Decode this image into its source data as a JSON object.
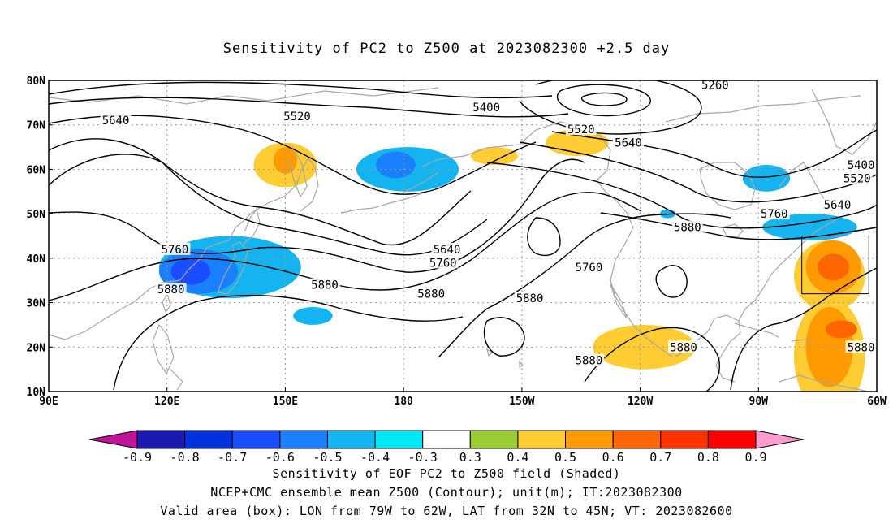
{
  "title": "Sensitivity of PC2 to Z500 at 2023082300 +2.5 day",
  "map": {
    "lon_range": [
      90,
      300
    ],
    "lat_range": [
      10,
      80
    ],
    "lon_ticks": [
      {
        "lon": 90,
        "label": "90E"
      },
      {
        "lon": 120,
        "label": "120E"
      },
      {
        "lon": 150,
        "label": "150E"
      },
      {
        "lon": 180,
        "label": "180"
      },
      {
        "lon": 210,
        "label": "150W"
      },
      {
        "lon": 240,
        "label": "120W"
      },
      {
        "lon": 270,
        "label": "90W"
      },
      {
        "lon": 300,
        "label": "60W"
      }
    ],
    "lat_ticks": [
      {
        "lat": 10,
        "label": "10N"
      },
      {
        "lat": 20,
        "label": "20N"
      },
      {
        "lat": 30,
        "label": "30N"
      },
      {
        "lat": 40,
        "label": "40N"
      },
      {
        "lat": 50,
        "label": "50N"
      },
      {
        "lat": 60,
        "label": "60N"
      },
      {
        "lat": 70,
        "label": "70N"
      },
      {
        "lat": 80,
        "label": "80N"
      }
    ],
    "gridlines": true,
    "valid_box": {
      "lon_min": 281,
      "lon_max": 298,
      "lat_min": 32,
      "lat_max": 45
    },
    "contour_labels": [
      {
        "text": "5260",
        "lon": 259,
        "lat": 79
      },
      {
        "text": "5400",
        "lon": 201,
        "lat": 74
      },
      {
        "text": "5400",
        "lon": 296,
        "lat": 61
      },
      {
        "text": "5520",
        "lon": 153,
        "lat": 72
      },
      {
        "text": "5520",
        "lon": 225,
        "lat": 69
      },
      {
        "text": "5520",
        "lon": 295,
        "lat": 58
      },
      {
        "text": "5640",
        "lon": 107,
        "lat": 71
      },
      {
        "text": "5640",
        "lon": 237,
        "lat": 66
      },
      {
        "text": "5640",
        "lon": 290,
        "lat": 52
      },
      {
        "text": "5640",
        "lon": 191,
        "lat": 42
      },
      {
        "text": "5760",
        "lon": 122,
        "lat": 42
      },
      {
        "text": "5760",
        "lon": 274,
        "lat": 50
      },
      {
        "text": "5760",
        "lon": 190,
        "lat": 39
      },
      {
        "text": "5760",
        "lon": 227,
        "lat": 38
      },
      {
        "text": "5880",
        "lon": 121,
        "lat": 33
      },
      {
        "text": "5880",
        "lon": 160,
        "lat": 34
      },
      {
        "text": "5880",
        "lon": 187,
        "lat": 32
      },
      {
        "text": "5880",
        "lon": 212,
        "lat": 31
      },
      {
        "text": "5880",
        "lon": 227,
        "lat": 17
      },
      {
        "text": "5880",
        "lon": 252,
        "lat": 47
      },
      {
        "text": "5880",
        "lon": 251,
        "lat": 20
      },
      {
        "text": "5880",
        "lon": 296,
        "lat": 20
      }
    ],
    "sensitivity_regions": [
      {
        "value": 0.4,
        "lon": 150,
        "lat": 61,
        "rx": 8,
        "ry": 5
      },
      {
        "value": 0.5,
        "lon": 150,
        "lat": 62,
        "rx": 3,
        "ry": 3
      },
      {
        "value": -0.4,
        "lon": 181,
        "lat": 60,
        "rx": 13,
        "ry": 5
      },
      {
        "value": -0.5,
        "lon": 178,
        "lat": 61,
        "rx": 5,
        "ry": 3
      },
      {
        "value": 0.4,
        "lon": 224,
        "lat": 66,
        "rx": 8,
        "ry": 3
      },
      {
        "value": 0.4,
        "lon": 203,
        "lat": 63,
        "rx": 6,
        "ry": 2
      },
      {
        "value": -0.4,
        "lon": 272,
        "lat": 58,
        "rx": 6,
        "ry": 3
      },
      {
        "value": -0.4,
        "lon": 283,
        "lat": 47,
        "rx": 12,
        "ry": 3
      },
      {
        "value": -0.4,
        "lon": 136,
        "lat": 38,
        "rx": 18,
        "ry": 7
      },
      {
        "value": -0.5,
        "lon": 128,
        "lat": 37,
        "rx": 10,
        "ry": 5
      },
      {
        "value": -0.6,
        "lon": 126,
        "lat": 37,
        "rx": 5,
        "ry": 3
      },
      {
        "value": -0.4,
        "lon": 157,
        "lat": 27,
        "rx": 5,
        "ry": 2
      },
      {
        "value": -0.4,
        "lon": 247,
        "lat": 50,
        "rx": 2,
        "ry": 1
      },
      {
        "value": 0.4,
        "lon": 241,
        "lat": 20,
        "rx": 13,
        "ry": 5
      },
      {
        "value": 0.4,
        "lon": 288,
        "lat": 36,
        "rx": 9,
        "ry": 8
      },
      {
        "value": 0.5,
        "lon": 289,
        "lat": 38,
        "rx": 7,
        "ry": 6
      },
      {
        "value": 0.6,
        "lon": 289,
        "lat": 38,
        "rx": 4,
        "ry": 3
      },
      {
        "value": 0.4,
        "lon": 288,
        "lat": 18,
        "rx": 9,
        "ry": 13
      },
      {
        "value": 0.5,
        "lon": 288,
        "lat": 20,
        "rx": 6,
        "ry": 9
      },
      {
        "value": 0.6,
        "lon": 291,
        "lat": 24,
        "rx": 4,
        "ry": 2
      }
    ]
  },
  "colorbar": {
    "labels": [
      "-0.9",
      "-0.8",
      "-0.7",
      "-0.6",
      "-0.5",
      "-0.4",
      "-0.3",
      "0.3",
      "0.4",
      "0.5",
      "0.6",
      "0.7",
      "0.8",
      "0.9"
    ],
    "colors": [
      "#1a1ab3",
      "#0033dd",
      "#1a4dff",
      "#1a80ff",
      "#14b4f0",
      "#00e8f6",
      "#ffffff",
      "#9acd32",
      "#ffcc33",
      "#ff9a00",
      "#ff6600",
      "#ff3300",
      "#ff0000"
    ],
    "under_color": "#c0149a",
    "over_color": "#ff9ccf"
  },
  "caption": {
    "line1": "Sensitivity of EOF PC2 to Z500 field (Shaded)",
    "line2": "NCEP+CMC ensemble mean Z500 (Contour); unit(m); IT:2023082300",
    "line3": "Valid area (box): LON from 79W to 62W, LAT from 32N to 45N; VT: 2023082600"
  }
}
